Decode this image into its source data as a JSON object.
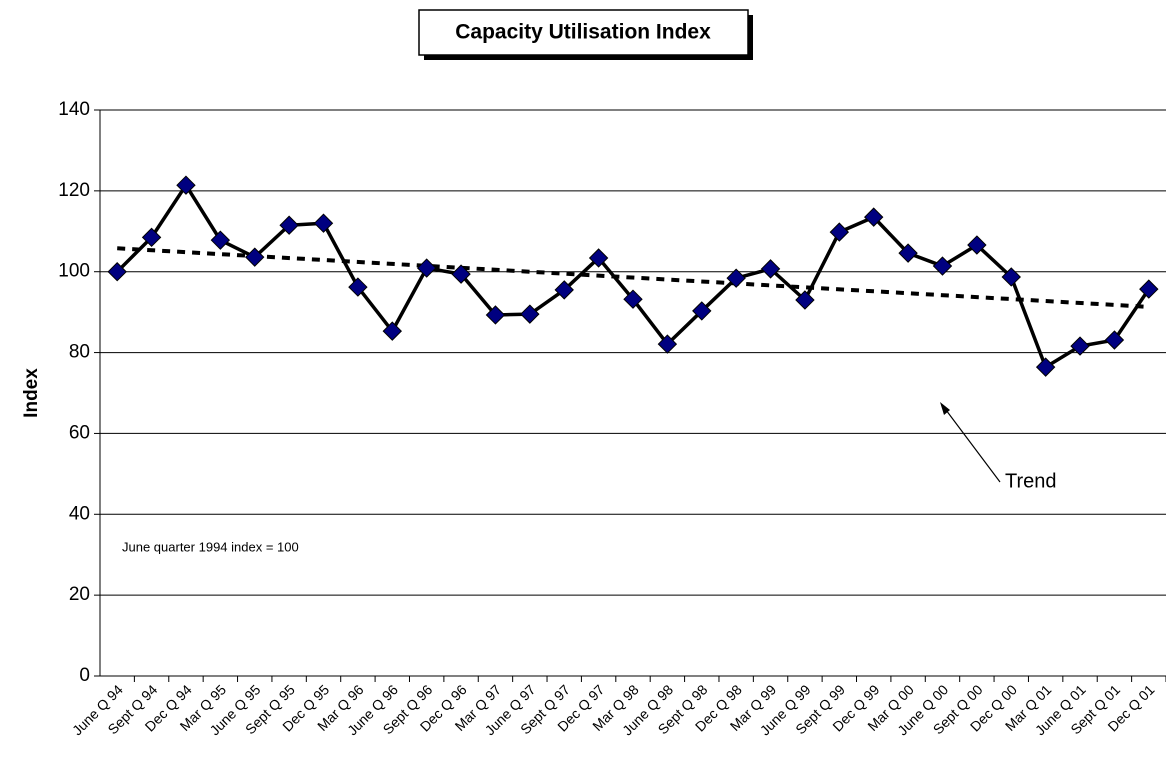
{
  "chart_data": {
    "type": "line",
    "title": "Capacity Utilisation Index",
    "y_label": "Index",
    "categories": [
      "June Q 94",
      "Sept Q 94",
      "Dec Q 94",
      "Mar Q 95",
      "June Q 95",
      "Sept Q 95",
      "Dec Q 95",
      "Mar Q 96",
      "June Q 96",
      "Sept Q 96",
      "Dec Q 96",
      "Mar Q 97",
      "June Q 97",
      "Sept Q 97",
      "Dec Q 97",
      "Mar Q 98",
      "June Q 98",
      "Sept Q 98",
      "Dec Q 98",
      "Mar Q 99",
      "June Q 99",
      "Sept Q 99",
      "Dec Q 99",
      "Mar Q 00",
      "June Q 00",
      "Sept Q 00",
      "Dec Q 00",
      "Mar Q 01",
      "June Q 01",
      "Sept Q 01",
      "Dec Q 01"
    ],
    "values": [
      100,
      108.5,
      121.4,
      107.8,
      103.6,
      111.5,
      112,
      96.2,
      85.3,
      100.9,
      99.4,
      89.3,
      89.5,
      95.5,
      103.4,
      93.2,
      82.1,
      90.3,
      98.4,
      100.7,
      93,
      109.8,
      113.5,
      104.6,
      101.4,
      106.6,
      98.7,
      76.4,
      81.6,
      83.1,
      95.7
    ],
    "color": "#000080",
    "trend": {
      "start": 105.8,
      "end": 91.3
    },
    "ylim": [
      0,
      140
    ],
    "yticks": [
      0,
      20,
      40,
      60,
      80,
      100,
      120,
      140
    ],
    "grid": true,
    "annotations": {
      "note": "June quarter 1994 index = 100",
      "trend_label": "Trend"
    }
  }
}
